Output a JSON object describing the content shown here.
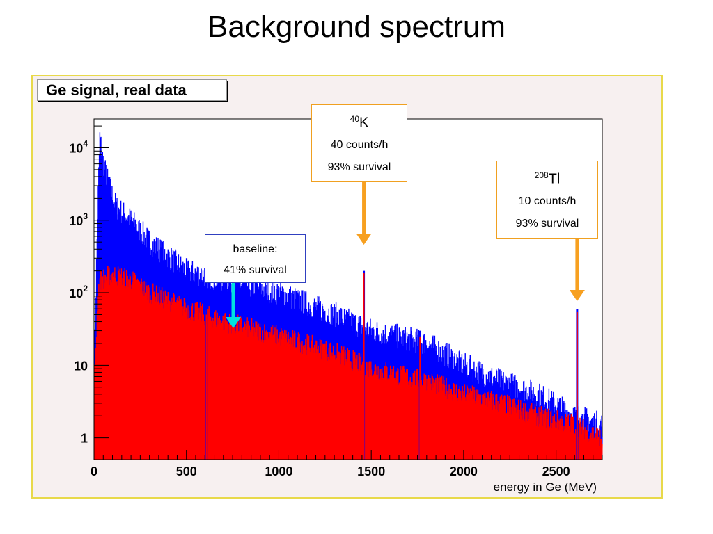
{
  "slide": {
    "title": "Background spectrum"
  },
  "plot_title": "Ge signal, real data",
  "annotations": {
    "k40": {
      "isotope_mass": "40",
      "isotope_symbol": "K",
      "rate": "40 counts/h",
      "survival": "93% survival"
    },
    "tl208": {
      "isotope_mass": "208",
      "isotope_symbol": "Tl",
      "rate": "10 counts/h",
      "survival": "93% survival"
    },
    "baseline": {
      "label": "baseline:",
      "survival": "41% survival"
    }
  },
  "colors": {
    "all_events": "#0000ff",
    "after_cut": "#ff0000",
    "annotation_arrow": "#f7a020",
    "baseline_arrow": "#00e0e0"
  },
  "chart_data": {
    "type": "bar",
    "title": "Ge signal, real data",
    "xlabel": "energy in Ge (MeV)",
    "ylabel": "",
    "xlim": [
      0,
      2750
    ],
    "ylim": [
      0.5,
      25000
    ],
    "yscale": "log",
    "x_ticks": [
      0,
      500,
      1000,
      1500,
      2000,
      2500
    ],
    "y_tick_labels": [
      {
        "value": 1,
        "mantissa": "1",
        "exponent": ""
      },
      {
        "value": 10,
        "mantissa": "10",
        "exponent": ""
      },
      {
        "value": 100,
        "mantissa": "10",
        "exponent": "2"
      },
      {
        "value": 1000,
        "mantissa": "10",
        "exponent": "3"
      },
      {
        "value": 10000,
        "mantissa": "10",
        "exponent": "4"
      }
    ],
    "grid": false,
    "series": [
      {
        "values_at": [
          0,
          20,
          30,
          50,
          80,
          120,
          200,
          300,
          500,
          700,
          1000,
          1300,
          1500,
          1800,
          2000,
          2200,
          2400,
          2600,
          2750
        ],
        "values": [
          10,
          2000,
          14000,
          6000,
          3000,
          1500,
          1000,
          500,
          200,
          150,
          100,
          50,
          30,
          20,
          10,
          6,
          4,
          2,
          1.5
        ]
      },
      {
        "values_at": [
          0,
          20,
          30,
          100,
          200,
          300,
          500,
          700,
          1000,
          1300,
          1500,
          1800,
          2000,
          2200,
          2400,
          2600,
          2750
        ],
        "values": [
          5,
          100,
          150,
          180,
          150,
          100,
          60,
          40,
          25,
          15,
          9,
          6,
          4,
          3,
          2,
          1.5,
          1
        ]
      }
    ],
    "peaks": [
      {
        "energy": 1460,
        "height_all": 200,
        "height_cut": 190,
        "label": "40K"
      },
      {
        "energy": 2614,
        "height_all": 60,
        "height_cut": 55,
        "label": "208Tl"
      },
      {
        "energy": 1764,
        "height_all": 30,
        "height_cut": 25
      },
      {
        "energy": 609,
        "height_all": 150,
        "height_cut": 50
      }
    ]
  }
}
